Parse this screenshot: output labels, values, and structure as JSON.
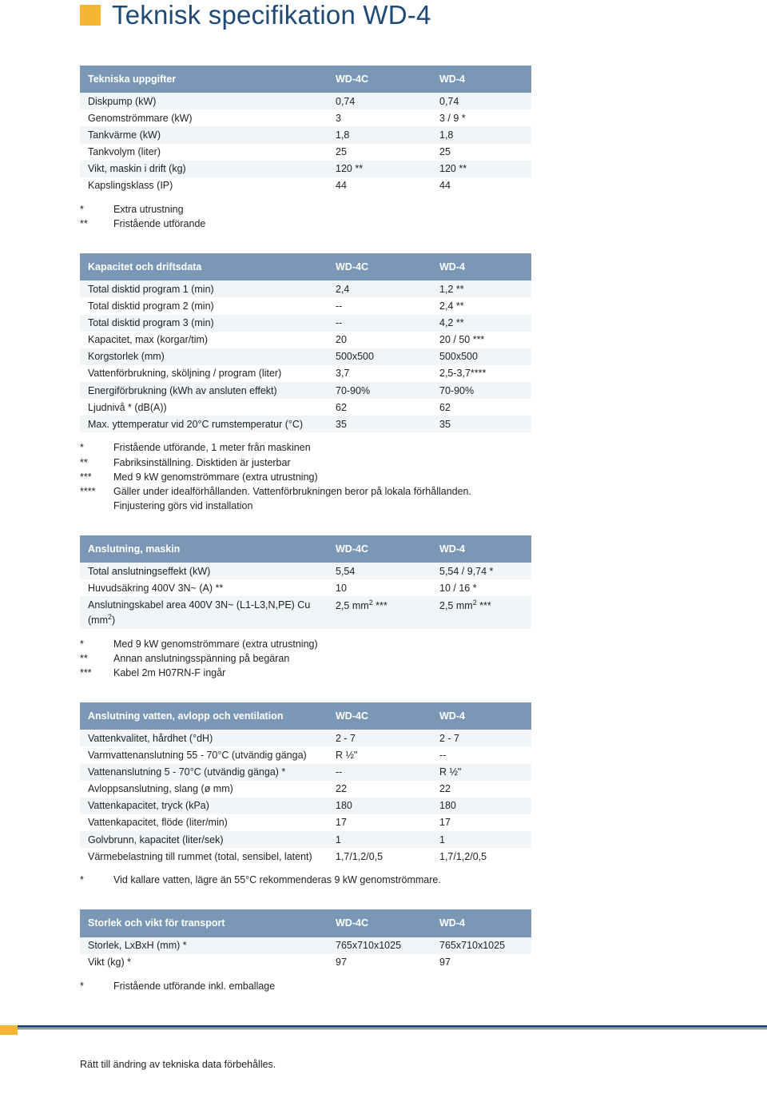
{
  "title": "Teknisk specifikation WD-4",
  "tables": [
    {
      "header": [
        "Tekniska uppgifter",
        "WD-4C",
        "WD-4"
      ],
      "rows": [
        [
          "Diskpump (kW)",
          "0,74",
          "0,74"
        ],
        [
          "Genomströmmare (kW)",
          "3",
          "3 / 9 *"
        ],
        [
          "Tankvärme (kW)",
          "1,8",
          "1,8"
        ],
        [
          "Tankvolym (liter)",
          "25",
          "25"
        ],
        [
          "Vikt, maskin i drift (kg)",
          "120 **",
          "120 **"
        ],
        [
          "Kapslingsklass (IP)",
          "44",
          "44"
        ]
      ],
      "footnotes": [
        [
          "*",
          "Extra utrustning"
        ],
        [
          "**",
          "Fristående utförande"
        ]
      ]
    },
    {
      "header": [
        "Kapacitet och driftsdata",
        "WD-4C",
        "WD-4"
      ],
      "rows": [
        [
          "Total disktid program 1 (min)",
          "2,4",
          "1,2 **"
        ],
        [
          "Total disktid program 2 (min)",
          "--",
          "2,4 **"
        ],
        [
          "Total disktid program 3 (min)",
          "--",
          "4,2 **"
        ],
        [
          "Kapacitet, max (korgar/tim)",
          "20",
          "20 / 50 ***"
        ],
        [
          "Korgstorlek (mm)",
          "500x500",
          "500x500"
        ],
        [
          "Vattenförbrukning, sköljning / program (liter)",
          "3,7",
          "2,5-3,7****"
        ],
        [
          "Energiförbrukning (kWh av ansluten effekt)",
          "70-90%",
          "70-90%"
        ],
        [
          "Ljudnivå * (dB(A))",
          "62",
          "62"
        ],
        [
          "Max. yttemperatur vid 20°C rumstemperatur (°C)",
          "35",
          "35"
        ]
      ],
      "footnotes": [
        [
          "*",
          "Fristående utförande, 1 meter från maskinen"
        ],
        [
          "**",
          "Fabriksinställning. Disktiden är justerbar"
        ],
        [
          "***",
          "Med 9 kW genomströmmare (extra utrustning)"
        ],
        [
          "****",
          "Gäller under idealförhållanden. Vattenförbrukningen beror på lokala förhållanden.\nFinjustering görs vid installation"
        ]
      ]
    },
    {
      "header": [
        "Anslutning, maskin",
        "WD-4C",
        "WD-4"
      ],
      "rows": [
        [
          "Total anslutningseffekt (kW)",
          "5,54",
          "5,54 / 9,74 *"
        ],
        [
          "Huvudsäkring 400V 3N~ (A) **",
          "10",
          "10 / 16 *"
        ],
        [
          "Anslutningskabel area 400V 3N~ (L1-L3,N,PE) Cu (mm²)",
          "2,5 mm² ***",
          "2,5 mm² ***"
        ]
      ],
      "footnotes": [
        [
          "*",
          "Med 9 kW genomströmmare (extra utrustning)"
        ],
        [
          "**",
          "Annan anslutningsspänning på begäran"
        ],
        [
          "***",
          "Kabel 2m H07RN-F ingår"
        ]
      ]
    },
    {
      "header": [
        "Anslutning vatten, avlopp och ventilation",
        "WD-4C",
        "WD-4"
      ],
      "rows": [
        [
          "Vattenkvalitet, hårdhet (°dH)",
          "2 - 7",
          "2 - 7"
        ],
        [
          "Varmvattenanslutning 55 - 70°C (utvändig gänga)",
          "R ½\"",
          "--"
        ],
        [
          "Vattenanslutning 5 - 70°C (utvändig gänga) *",
          "--",
          "R ½\""
        ],
        [
          "Avloppsanslutning, slang (ø mm)",
          "22",
          "22"
        ],
        [
          "Vattenkapacitet, tryck (kPa)",
          "180",
          "180"
        ],
        [
          "Vattenkapacitet, flöde (liter/min)",
          "17",
          "17"
        ],
        [
          "Golvbrunn, kapacitet (liter/sek)",
          "1",
          "1"
        ],
        [
          "Värmebelastning till rummet (total, sensibel, latent)",
          "1,7/1,2/0,5",
          "1,7/1,2/0,5"
        ]
      ],
      "footnotes": [
        [
          "*",
          "Vid kallare vatten, lägre än 55°C rekommenderas 9 kW genomströmmare."
        ]
      ]
    },
    {
      "header": [
        "Storlek och vikt för transport",
        "WD-4C",
        "WD-4"
      ],
      "rows": [
        [
          "Storlek, LxBxH (mm) *",
          "765x710x1025",
          "765x710x1025"
        ],
        [
          "Vikt (kg) *",
          "97",
          "97"
        ]
      ],
      "footnotes": [
        [
          "*",
          "Fristående utförande inkl. emballage"
        ]
      ]
    }
  ],
  "footer_text": "Rätt till ändring av tekniska data förbehålles.",
  "colors": {
    "accent_yellow": "#f6b634",
    "header_blue": "#7a98b6",
    "title_blue": "#1f4a78",
    "row_alt": "#f1f5f8"
  }
}
